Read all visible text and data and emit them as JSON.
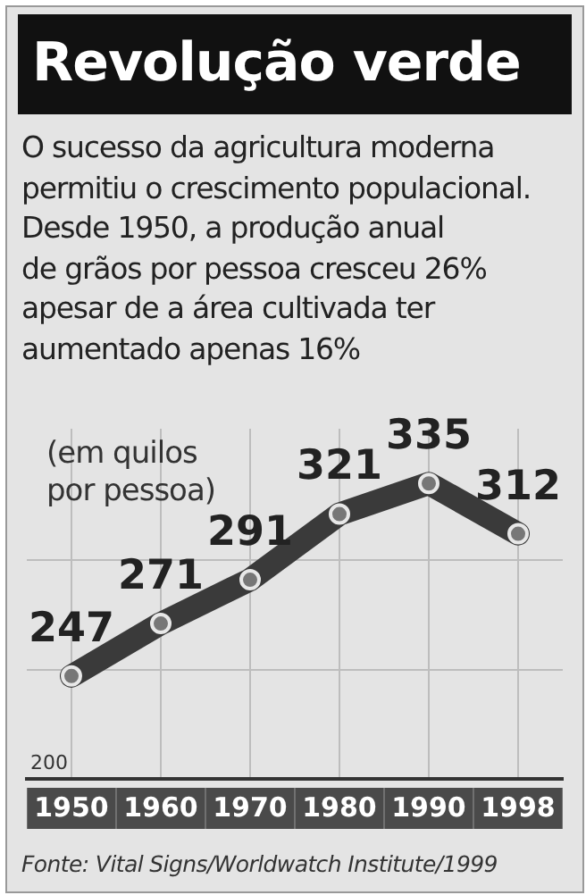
{
  "chart_data": {
    "type": "line",
    "title": "Revolução verde",
    "subtitle": "O sucesso da agricultura moderna\npermitiu o crescimento populacional.\nDesde 1950, a produção anual\nde grãos por pessoa cresceu 26%\napesar de a área cultivada ter\naumentado apenas 16%",
    "ylabel": "(em quilos\npor pessoa)",
    "categories": [
      "1950",
      "1960",
      "1970",
      "1980",
      "1990",
      "1998"
    ],
    "series": [
      {
        "color": "#3a3a3a",
        "values": [
          247,
          271,
          291,
          321,
          335,
          312
        ]
      }
    ],
    "ylim": [
      200,
      360
    ],
    "yticks": [
      {
        "value": 250,
        "label": null
      },
      {
        "value": 300,
        "label": null
      }
    ],
    "grid": true,
    "data_labels": true,
    "marker": "circle",
    "line_style": "solid",
    "annotations": [
      "Fonte: Vital Signs/Worldwatch Institute/1999",
      "200"
    ]
  }
}
